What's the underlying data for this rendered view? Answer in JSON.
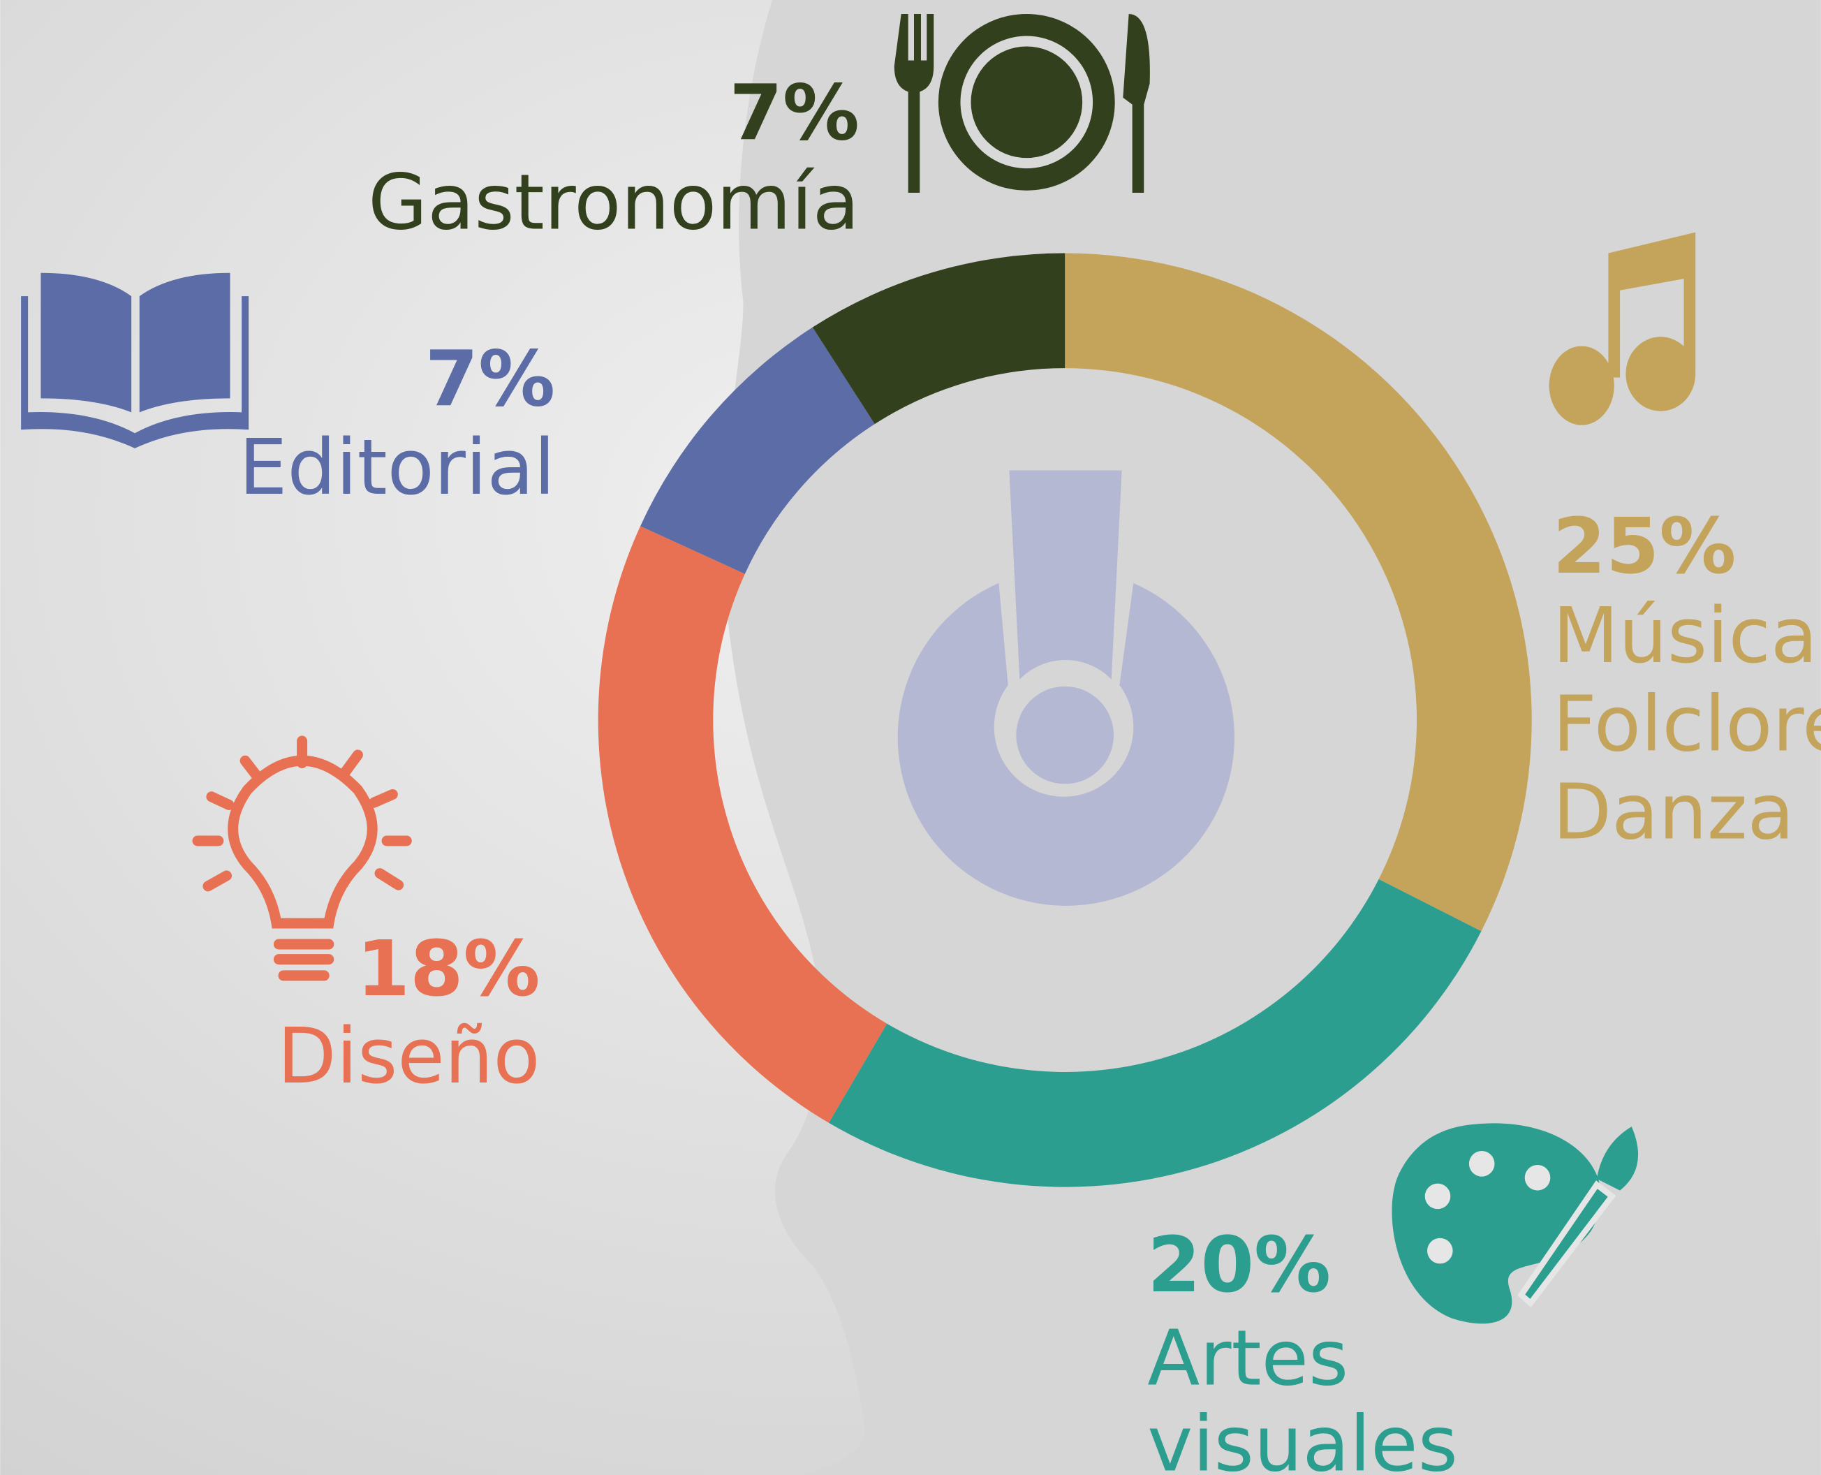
{
  "chart_data": {
    "type": "donut",
    "categories": [
      [
        "Música",
        "Folclore",
        "Danza"
      ],
      [
        "Artes",
        "visuales"
      ],
      [
        "Diseño"
      ],
      [
        "Editorial"
      ],
      [
        "Gastronomía"
      ]
    ],
    "values": [
      25,
      20,
      18,
      7,
      7
    ],
    "value_labels": [
      "25%",
      "20%",
      "18%",
      "7%",
      "7%"
    ],
    "colors": [
      "#c4a35a",
      "#2b9e8f",
      "#e87053",
      "#5b6ca7",
      "#32401e"
    ]
  }
}
